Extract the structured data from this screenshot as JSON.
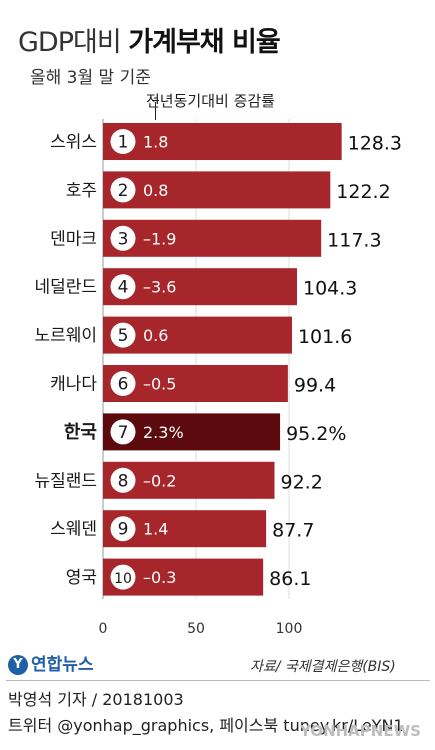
{
  "header": {
    "title_light": "GDP대비",
    "title_bold": "가계부채 비율",
    "subtitle": "올해 3월 말 기준",
    "annotation": "전년동기대비 증감률"
  },
  "chart_data": {
    "type": "bar",
    "orientation": "horizontal",
    "title": "GDP대비 가계부채 비율",
    "subtitle": "올해 3월 말 기준",
    "categories": [
      "스위스",
      "호주",
      "덴마크",
      "네덜란드",
      "노르웨이",
      "캐나다",
      "한국",
      "뉴질랜드",
      "스웨덴",
      "영국"
    ],
    "ranks": [
      "1",
      "2",
      "3",
      "4",
      "5",
      "6",
      "7",
      "8",
      "9",
      "10"
    ],
    "values": [
      128.3,
      122.2,
      117.3,
      104.3,
      101.6,
      99.4,
      95.2,
      92.2,
      87.7,
      86.1
    ],
    "value_labels": [
      "128.3",
      "122.2",
      "117.3",
      "104.3",
      "101.6",
      "99.4",
      "95.2%",
      "92.2",
      "87.7",
      "86.1"
    ],
    "change": [
      "1.8",
      "0.8",
      "–1.9",
      "–3.6",
      "0.6",
      "–0.5",
      "2.3%",
      "–0.2",
      "1.4",
      "–0.3"
    ],
    "highlight_index": 6,
    "xlim": [
      0,
      130
    ],
    "xticks": [
      "0",
      "50",
      "100"
    ],
    "xtick_values": [
      0,
      50,
      100
    ],
    "colors": {
      "bar": "#a6262c",
      "highlight": "#5c0a0e",
      "axis": "#999999"
    }
  },
  "footer": {
    "logo": "연합뉴스",
    "source": "자료/ 국제결제은행(BIS)",
    "credit_line1": "박영석 기자 / 20181003",
    "credit_line2": "트위터 @yonhap_graphics, 페이스북 tuney.kr/LeYN1",
    "watermark": "YONHAPNEWS"
  }
}
